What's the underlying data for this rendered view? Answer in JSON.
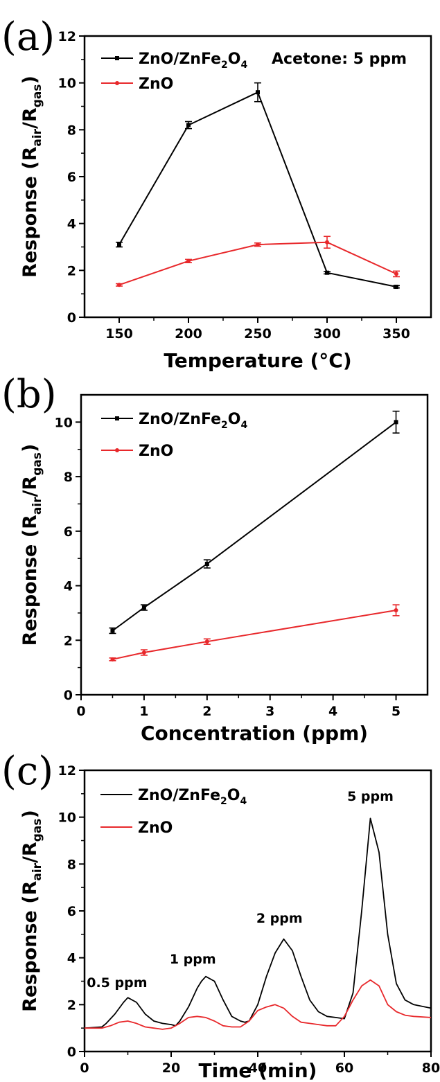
{
  "chart_data": [
    {
      "panel": "(a)",
      "type": "line",
      "xlabel": "Temperature (°C)",
      "ylabel": "Response (Rair/Rgas)",
      "xlim": [
        125,
        375
      ],
      "ylim": [
        0,
        12
      ],
      "xticks": [
        150,
        200,
        250,
        300,
        350
      ],
      "yticks": [
        0,
        2,
        4,
        6,
        8,
        10,
        12
      ],
      "annotation": "Acetone: 5 ppm",
      "legend_position": "top-left",
      "series": [
        {
          "name": "ZnO/ZnFe2O4",
          "color": "#000000",
          "marker": "square",
          "x": [
            150,
            200,
            250,
            300,
            350
          ],
          "y": [
            3.1,
            8.2,
            9.6,
            1.9,
            1.3
          ],
          "err": [
            0.1,
            0.15,
            0.4,
            0.05,
            0.05
          ]
        },
        {
          "name": "ZnO",
          "color": "#e8282b",
          "marker": "circle",
          "x": [
            150,
            200,
            250,
            300,
            350
          ],
          "y": [
            1.38,
            2.4,
            3.1,
            3.2,
            1.85
          ],
          "err": [
            0.05,
            0.07,
            0.07,
            0.25,
            0.12
          ]
        }
      ]
    },
    {
      "panel": "(b)",
      "type": "line",
      "xlabel": "Concentration (ppm)",
      "ylabel": "Response (Rair/Rgas)",
      "xlim": [
        0,
        5.5
      ],
      "ylim": [
        0,
        11
      ],
      "xticks": [
        0,
        1,
        2,
        3,
        4,
        5
      ],
      "yticks": [
        0,
        2,
        4,
        6,
        8,
        10
      ],
      "legend_position": "top-left",
      "series": [
        {
          "name": "ZnO/ZnFe2O4",
          "color": "#000000",
          "marker": "square",
          "x": [
            0.5,
            1,
            2,
            5
          ],
          "y": [
            2.35,
            3.2,
            4.8,
            10.0
          ],
          "err": [
            0.1,
            0.1,
            0.15,
            0.4
          ]
        },
        {
          "name": "ZnO",
          "color": "#e8282b",
          "marker": "circle",
          "x": [
            0.5,
            1,
            2,
            5
          ],
          "y": [
            1.3,
            1.55,
            1.95,
            3.1
          ],
          "err": [
            0.05,
            0.1,
            0.1,
            0.2
          ]
        }
      ]
    },
    {
      "panel": "(c)",
      "type": "line",
      "xlabel": "Time (min)",
      "ylabel": "Response (Rair/Rgas)",
      "xlim": [
        0,
        80
      ],
      "ylim": [
        0,
        12
      ],
      "xticks": [
        0,
        20,
        40,
        60,
        80
      ],
      "yticks": [
        0,
        2,
        4,
        6,
        8,
        10,
        12
      ],
      "legend_position": "top-left",
      "annotations": [
        {
          "text": "0.5 ppm",
          "x": 7.5,
          "y": 2.75
        },
        {
          "text": "1 ppm",
          "x": 25,
          "y": 3.75
        },
        {
          "text": "2 ppm",
          "x": 45,
          "y": 5.5
        },
        {
          "text": "5 ppm",
          "x": 66,
          "y": 10.7
        }
      ],
      "series": [
        {
          "name": "ZnO/ZnFe2O4",
          "color": "#000000",
          "x": [
            0,
            4,
            5,
            7,
            9,
            10,
            12,
            14,
            16,
            18,
            20,
            21,
            22,
            24,
            26,
            27,
            28,
            30,
            32,
            34,
            36,
            37,
            38,
            40,
            42,
            44,
            46,
            48,
            50,
            52,
            54,
            56,
            58,
            60,
            62,
            64,
            66,
            68,
            70,
            72,
            74,
            76,
            80
          ],
          "y": [
            1.0,
            1.05,
            1.2,
            1.6,
            2.1,
            2.3,
            2.1,
            1.6,
            1.3,
            1.2,
            1.15,
            1.1,
            1.3,
            1.9,
            2.7,
            3.0,
            3.2,
            3.0,
            2.2,
            1.5,
            1.3,
            1.25,
            1.3,
            2.0,
            3.2,
            4.2,
            4.8,
            4.3,
            3.2,
            2.2,
            1.7,
            1.5,
            1.45,
            1.4,
            2.5,
            6.0,
            9.95,
            8.5,
            5.0,
            2.9,
            2.2,
            2.0,
            1.85
          ]
        },
        {
          "name": "ZnO",
          "color": "#e8282b",
          "x": [
            0,
            4,
            6,
            8,
            10,
            12,
            14,
            16,
            18,
            20,
            22,
            24,
            26,
            28,
            30,
            32,
            34,
            36,
            38,
            40,
            42,
            44,
            46,
            48,
            50,
            52,
            54,
            56,
            58,
            60,
            62,
            64,
            66,
            68,
            70,
            72,
            74,
            76,
            80
          ],
          "y": [
            1.0,
            1.0,
            1.1,
            1.25,
            1.3,
            1.2,
            1.05,
            1.0,
            0.95,
            1.0,
            1.2,
            1.45,
            1.5,
            1.45,
            1.3,
            1.1,
            1.05,
            1.05,
            1.3,
            1.75,
            1.9,
            2.0,
            1.85,
            1.5,
            1.25,
            1.2,
            1.15,
            1.1,
            1.1,
            1.5,
            2.2,
            2.8,
            3.05,
            2.8,
            2.0,
            1.7,
            1.55,
            1.5,
            1.45
          ]
        }
      ]
    }
  ]
}
